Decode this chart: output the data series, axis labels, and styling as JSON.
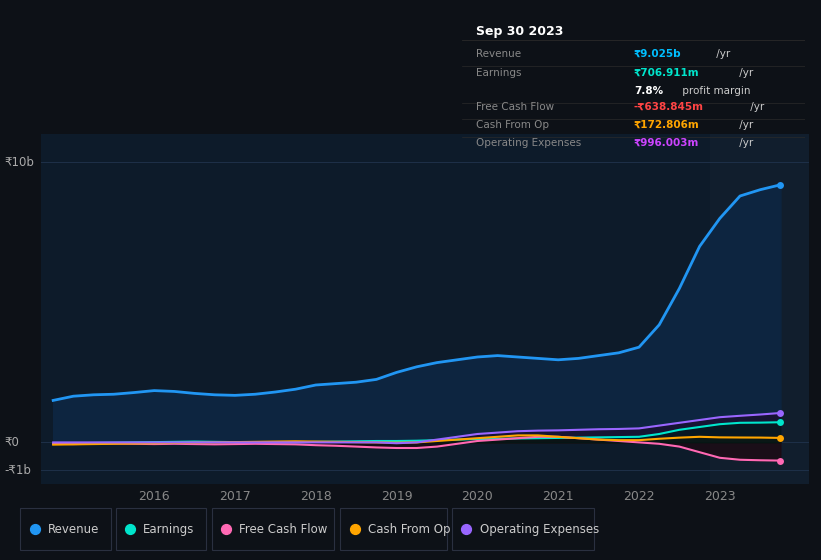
{
  "bg_color": "#0d1117",
  "plot_bg_color": "#0d1b2a",
  "grid_color": "#1e3048",
  "x_years": [
    2014.75,
    2015.0,
    2015.25,
    2015.5,
    2015.75,
    2016.0,
    2016.25,
    2016.5,
    2016.75,
    2017.0,
    2017.25,
    2017.5,
    2017.75,
    2018.0,
    2018.25,
    2018.5,
    2018.75,
    2019.0,
    2019.25,
    2019.5,
    2019.75,
    2020.0,
    2020.25,
    2020.5,
    2020.75,
    2021.0,
    2021.25,
    2021.5,
    2021.75,
    2022.0,
    2022.25,
    2022.5,
    2022.75,
    2023.0,
    2023.25,
    2023.5,
    2023.75
  ],
  "revenue": [
    1500,
    1650,
    1700,
    1720,
    1780,
    1850,
    1820,
    1750,
    1700,
    1680,
    1720,
    1800,
    1900,
    2050,
    2100,
    2150,
    2250,
    2500,
    2700,
    2850,
    2950,
    3050,
    3100,
    3050,
    3000,
    2950,
    3000,
    3100,
    3200,
    3400,
    4200,
    5500,
    7000,
    8000,
    8800,
    9025,
    9200
  ],
  "earnings": [
    -50,
    -30,
    -20,
    -10,
    0,
    10,
    20,
    30,
    20,
    10,
    0,
    -10,
    0,
    20,
    30,
    40,
    50,
    50,
    60,
    80,
    100,
    120,
    130,
    140,
    150,
    160,
    170,
    180,
    190,
    200,
    300,
    450,
    550,
    650,
    700,
    706,
    720
  ],
  "free_cash_flow": [
    -50,
    -60,
    -50,
    -40,
    -50,
    -60,
    -50,
    -60,
    -70,
    -60,
    -50,
    -60,
    -70,
    -100,
    -120,
    -150,
    -180,
    -200,
    -200,
    -150,
    -50,
    50,
    100,
    150,
    200,
    200,
    150,
    100,
    50,
    0,
    -50,
    -150,
    -350,
    -550,
    -620,
    -638,
    -650
  ],
  "cash_from_op": [
    -80,
    -70,
    -60,
    -50,
    -40,
    -30,
    -20,
    -10,
    0,
    10,
    20,
    30,
    40,
    30,
    20,
    10,
    0,
    -10,
    0,
    50,
    100,
    150,
    200,
    250,
    250,
    200,
    150,
    100,
    80,
    80,
    130,
    170,
    200,
    180,
    175,
    172,
    160
  ],
  "operating_expenses": [
    0,
    0,
    0,
    0,
    0,
    0,
    0,
    0,
    0,
    0,
    0,
    0,
    0,
    0,
    0,
    0,
    0,
    -30,
    0,
    100,
    200,
    300,
    350,
    400,
    420,
    430,
    450,
    470,
    480,
    500,
    600,
    700,
    800,
    900,
    950,
    996,
    1050
  ],
  "line_colors": {
    "revenue": "#2196f3",
    "earnings": "#00e5cc",
    "free_cash_flow": "#ff69b4",
    "cash_from_op": "#ffa500",
    "operating_expenses": "#9966ff"
  },
  "fill_revenue_color": "#0d2540",
  "highlight_bg": "#111e2d",
  "highlight_x": 2022.875,
  "xlim": [
    2014.6,
    2024.1
  ],
  "ylim": [
    -1500,
    11000
  ],
  "y_ticks": [
    10000,
    0,
    -1000
  ],
  "y_tick_labels": [
    "₹10b",
    "₹0",
    "-₹1b"
  ],
  "x_tick_positions": [
    2016,
    2017,
    2018,
    2019,
    2020,
    2021,
    2022,
    2023
  ],
  "x_tick_labels": [
    "2016",
    "2017",
    "2018",
    "2019",
    "2020",
    "2021",
    "2022",
    "2023"
  ],
  "info_box": {
    "date": "Sep 30 2023",
    "rows": [
      {
        "label": "Revenue",
        "value": "₹9.025b",
        "suffix": " /yr",
        "vcolor": "#00bfff",
        "has_sep": true
      },
      {
        "label": "Earnings",
        "value": "₹706.911m",
        "suffix": " /yr",
        "vcolor": "#00e5cc",
        "has_sep": false
      },
      {
        "label": "",
        "value": "7.8%",
        "suffix": " profit margin",
        "vcolor": "#ffffff",
        "has_sep": true
      },
      {
        "label": "Free Cash Flow",
        "value": "-₹638.845m",
        "suffix": " /yr",
        "vcolor": "#ff4444",
        "has_sep": true
      },
      {
        "label": "Cash From Op",
        "value": "₹172.806m",
        "suffix": " /yr",
        "vcolor": "#ffa500",
        "has_sep": true
      },
      {
        "label": "Operating Expenses",
        "value": "₹996.003m",
        "suffix": " /yr",
        "vcolor": "#cc44ff",
        "has_sep": false
      }
    ]
  },
  "legend": [
    {
      "label": "Revenue",
      "color": "#2196f3"
    },
    {
      "label": "Earnings",
      "color": "#00e5cc"
    },
    {
      "label": "Free Cash Flow",
      "color": "#ff69b4"
    },
    {
      "label": "Cash From Op",
      "color": "#ffa500"
    },
    {
      "label": "Operating Expenses",
      "color": "#9966ff"
    }
  ]
}
